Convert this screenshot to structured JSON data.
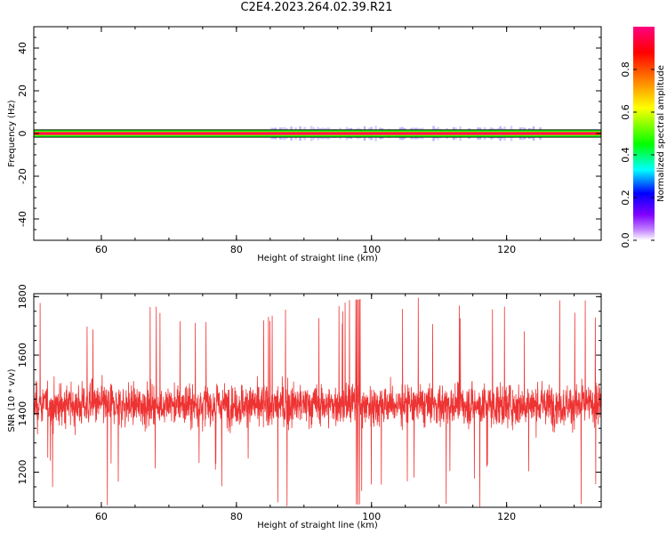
{
  "title": "C2E4.2023.264.02.39.R21",
  "chart_data": [
    {
      "type": "heatmap",
      "name": "spectrogram",
      "xlabel": "Height of straight line (km)",
      "ylabel": "Frequency (Hz)",
      "xlim": [
        50,
        134
      ],
      "ylim": [
        -50,
        50
      ],
      "xticks": [
        60,
        80,
        100,
        120
      ],
      "yticks": [
        -40,
        -20,
        0,
        20,
        40
      ],
      "band": {
        "center": 0,
        "core_halfwidth": 1,
        "faint_region_x": [
          85,
          125
        ],
        "faint_halfwidth": 3
      },
      "colorbar": {
        "label": "Normalized spectral amplitude",
        "range": [
          0,
          1
        ],
        "ticks": [
          0.0,
          0.2,
          0.4,
          0.6,
          0.8
        ],
        "tick_labels": [
          "0.0",
          "0.2",
          "0.4",
          "0.6",
          "0.8"
        ],
        "colors": [
          "#ffffff",
          "#8000ff",
          "#0000ff",
          "#00ffff",
          "#00ff00",
          "#ffff00",
          "#ff8000",
          "#ff0000",
          "#ff0080"
        ]
      }
    },
    {
      "type": "line",
      "name": "snr",
      "xlabel": "Height of straight line (km)",
      "ylabel": "SNR (10 * v/v)",
      "xlim": [
        50,
        134
      ],
      "ylim": [
        1080,
        1810
      ],
      "xticks": [
        60,
        80,
        100,
        120
      ],
      "yticks": [
        1200,
        1400,
        1600,
        1800
      ],
      "mean": 1430,
      "band_low": 1250,
      "band_high": 1600,
      "min": 1080,
      "max": 1810,
      "color": "#ee3333"
    }
  ]
}
